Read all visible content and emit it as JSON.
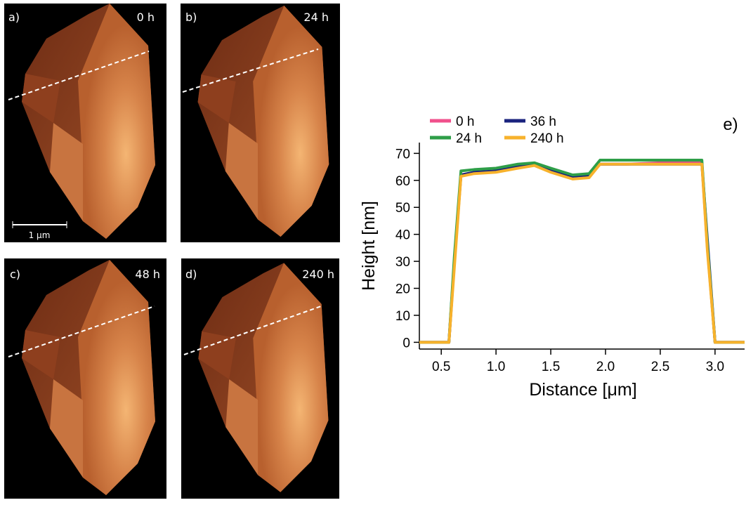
{
  "panels": [
    {
      "label": "a)",
      "time": "0 h"
    },
    {
      "label": "b)",
      "time": "24 h"
    },
    {
      "label": "c)",
      "time": "48 h"
    },
    {
      "label": "d)",
      "time": "240 h"
    }
  ],
  "scale_bar": "1 μm",
  "chart_data": {
    "type": "line",
    "label": "e)",
    "x_label": "Distance [μm]",
    "y_label": "Height [nm]",
    "x": [
      0.3,
      0.5,
      0.57,
      0.62,
      0.68,
      0.8,
      1.0,
      1.2,
      1.35,
      1.5,
      1.7,
      1.85,
      1.95,
      2.2,
      2.5,
      2.88,
      2.93,
      3.0,
      3.1,
      3.27
    ],
    "series": [
      {
        "name": "0 h",
        "color": "#f0508c",
        "values": [
          0,
          0,
          0,
          30,
          62,
          63,
          63.5,
          65,
          66,
          64,
          61.5,
          62,
          66,
          66,
          66.5,
          66.5,
          35,
          0,
          0,
          0
        ]
      },
      {
        "name": "36 h",
        "color": "#1a237e",
        "values": [
          0,
          0,
          0,
          30,
          62,
          63,
          63.5,
          65,
          66,
          64,
          61.5,
          62,
          66,
          66,
          66,
          66,
          38,
          0,
          0,
          0
        ]
      },
      {
        "name": "24 h",
        "color": "#2e9e48",
        "values": [
          0,
          0,
          0,
          32,
          63.5,
          64,
          64.5,
          66,
          66.5,
          64.5,
          62,
          62.5,
          67.5,
          67.5,
          67.5,
          67.5,
          36,
          0,
          0,
          0
        ]
      },
      {
        "name": "240 h",
        "color": "#f7b22c",
        "values": [
          0,
          0,
          0,
          28,
          61.5,
          62.5,
          63,
          64.5,
          65.5,
          63,
          60.5,
          61,
          66,
          66,
          66,
          66,
          34,
          0,
          0,
          0
        ]
      }
    ],
    "xlim": [
      0.3,
      3.27
    ],
    "ylim": [
      -2.5,
      74
    ],
    "xticks": [
      0.5,
      {
        "value": 1,
        "label": "1.0"
      },
      1.5,
      {
        "value": 2,
        "label": "2.0"
      },
      2.5,
      {
        "value": 3,
        "label": "3.0"
      }
    ],
    "yticks": [
      0,
      10,
      20,
      30,
      40,
      50,
      60,
      70
    ]
  }
}
